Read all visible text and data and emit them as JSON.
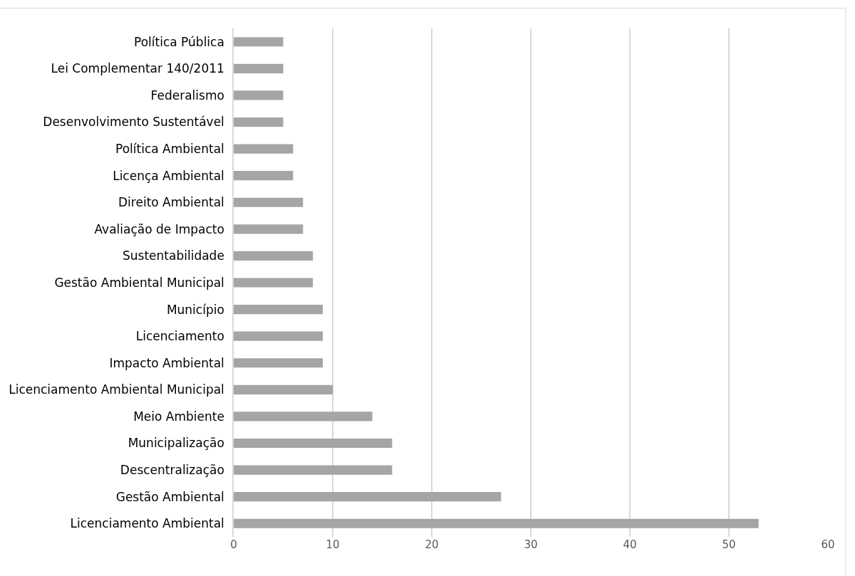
{
  "chart_data": {
    "type": "bar",
    "orientation": "horizontal",
    "categories": [
      "Política Pública",
      "Lei Complementar 140/2011",
      "Federalismo",
      "Desenvolvimento Sustentável",
      "Política Ambiental",
      "Licença Ambiental",
      "Direito Ambiental",
      "Avaliação de Impacto",
      "Sustentabilidade",
      "Gestão Ambiental Municipal",
      "Município",
      "Licenciamento",
      "Impacto Ambiental",
      "Licenciamento Ambiental Municipal",
      "Meio Ambiente",
      "Municipalização",
      "Descentralização",
      "Gestão Ambiental",
      "Licenciamento Ambiental"
    ],
    "values": [
      5,
      5,
      5,
      5,
      6,
      6,
      7,
      7,
      8,
      8,
      9,
      9,
      9,
      10,
      14,
      16,
      16,
      27,
      53
    ],
    "color": "#a5a5a5",
    "xlim": [
      0,
      60
    ],
    "xticks": [
      0,
      10,
      20,
      30,
      40,
      50,
      60
    ],
    "grid": "x"
  }
}
